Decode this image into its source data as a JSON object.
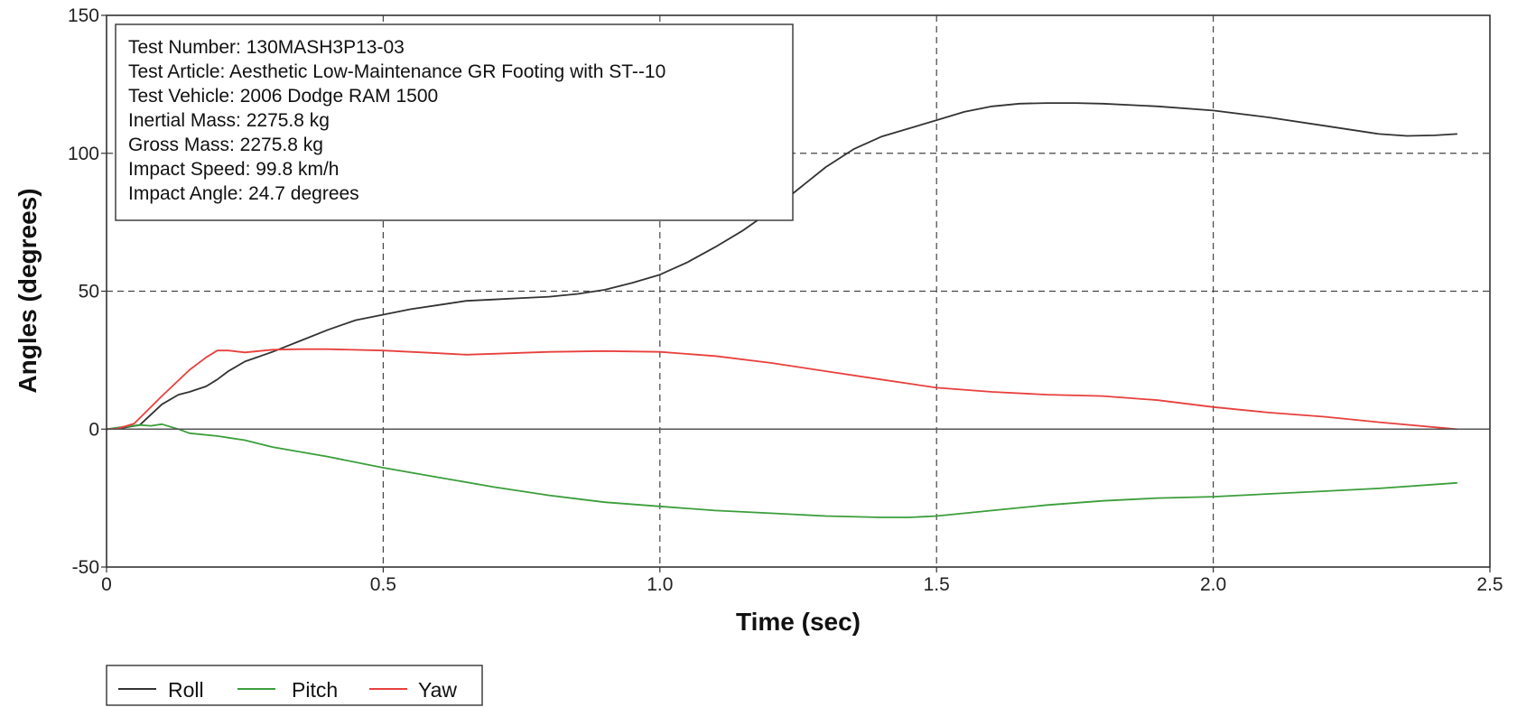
{
  "chart_data": {
    "type": "line",
    "xlabel": "Time (sec)",
    "ylabel": "Angles (degrees)",
    "xlim": [
      0,
      2.5
    ],
    "ylim": [
      -50,
      150
    ],
    "xticks": [
      0,
      0.5,
      1.0,
      1.5,
      2.0,
      2.5
    ],
    "xtick_labels": [
      "0",
      "0.5",
      "1.0",
      "1.5",
      "2.0",
      "2.5"
    ],
    "yticks": [
      -50,
      0,
      50,
      100,
      150
    ],
    "ytick_labels": [
      "-50",
      "0",
      "50",
      "100",
      "150"
    ],
    "grid": true,
    "grid_style": "dashed",
    "legend_position": "bottom-left",
    "info_box": [
      "Test Number: 130MASH3P13-03",
      "Test Article: Aesthetic Low-Maintenance GR Footing with ST--10",
      "Test Vehicle: 2006 Dodge RAM 1500",
      "Inertial Mass: 2275.8 kg",
      "Gross Mass: 2275.8 kg",
      "Impact Speed: 99.8 km/h",
      "Impact Angle: 24.7 degrees"
    ],
    "series": [
      {
        "name": "Roll",
        "color": "#333333",
        "x": [
          0,
          0.03,
          0.06,
          0.1,
          0.13,
          0.15,
          0.18,
          0.2,
          0.22,
          0.25,
          0.3,
          0.35,
          0.4,
          0.45,
          0.5,
          0.55,
          0.6,
          0.65,
          0.7,
          0.75,
          0.8,
          0.85,
          0.9,
          0.95,
          1.0,
          1.05,
          1.1,
          1.15,
          1.2,
          1.25,
          1.3,
          1.35,
          1.4,
          1.45,
          1.5,
          1.55,
          1.6,
          1.65,
          1.7,
          1.75,
          1.8,
          1.9,
          2.0,
          2.1,
          2.2,
          2.3,
          2.35,
          2.4,
          2.44
        ],
        "y": [
          0,
          0.5,
          1.5,
          9,
          12.5,
          13.5,
          15.5,
          18,
          21,
          24.5,
          28,
          32,
          36,
          39.5,
          41.5,
          43.5,
          45,
          46.5,
          47,
          47.5,
          48,
          49,
          50.5,
          53,
          56,
          60.5,
          66,
          72,
          79,
          87,
          95,
          101.5,
          106,
          109,
          112,
          115,
          117,
          118,
          118.2,
          118.2,
          118,
          117,
          115.5,
          113,
          110,
          107,
          106.3,
          106.5,
          107
        ]
      },
      {
        "name": "Pitch",
        "color": "#3b9e3b",
        "x": [
          0,
          0.03,
          0.06,
          0.08,
          0.1,
          0.13,
          0.15,
          0.2,
          0.25,
          0.3,
          0.4,
          0.5,
          0.6,
          0.7,
          0.8,
          0.9,
          1.0,
          1.1,
          1.2,
          1.3,
          1.4,
          1.45,
          1.5,
          1.6,
          1.7,
          1.8,
          1.9,
          2.0,
          2.1,
          2.2,
          2.3,
          2.44
        ],
        "y": [
          0,
          0.8,
          1.5,
          1.2,
          1.8,
          0,
          -1.5,
          -2.5,
          -4,
          -6.5,
          -10,
          -14,
          -17.5,
          -21,
          -24,
          -26.5,
          -28,
          -29.5,
          -30.5,
          -31.5,
          -32,
          -32,
          -31.5,
          -29.5,
          -27.5,
          -26,
          -25,
          -24.5,
          -23.5,
          -22.5,
          -21.5,
          -19.5
        ]
      },
      {
        "name": "Yaw",
        "color": "#e8403d",
        "x": [
          0,
          0.02,
          0.05,
          0.1,
          0.15,
          0.18,
          0.2,
          0.22,
          0.25,
          0.3,
          0.35,
          0.4,
          0.5,
          0.6,
          0.65,
          0.7,
          0.8,
          0.9,
          1.0,
          1.1,
          1.2,
          1.3,
          1.4,
          1.5,
          1.6,
          1.7,
          1.8,
          1.9,
          2.0,
          2.1,
          2.2,
          2.3,
          2.44
        ],
        "y": [
          0,
          0.2,
          2,
          12,
          21.5,
          26,
          28.5,
          28.5,
          27.8,
          28.8,
          29,
          29,
          28.5,
          27.5,
          27,
          27.3,
          28,
          28.3,
          28,
          26.5,
          24,
          21,
          18,
          15,
          13.5,
          12.5,
          12,
          10.5,
          8,
          6,
          4.5,
          2.5,
          0
        ]
      }
    ]
  }
}
